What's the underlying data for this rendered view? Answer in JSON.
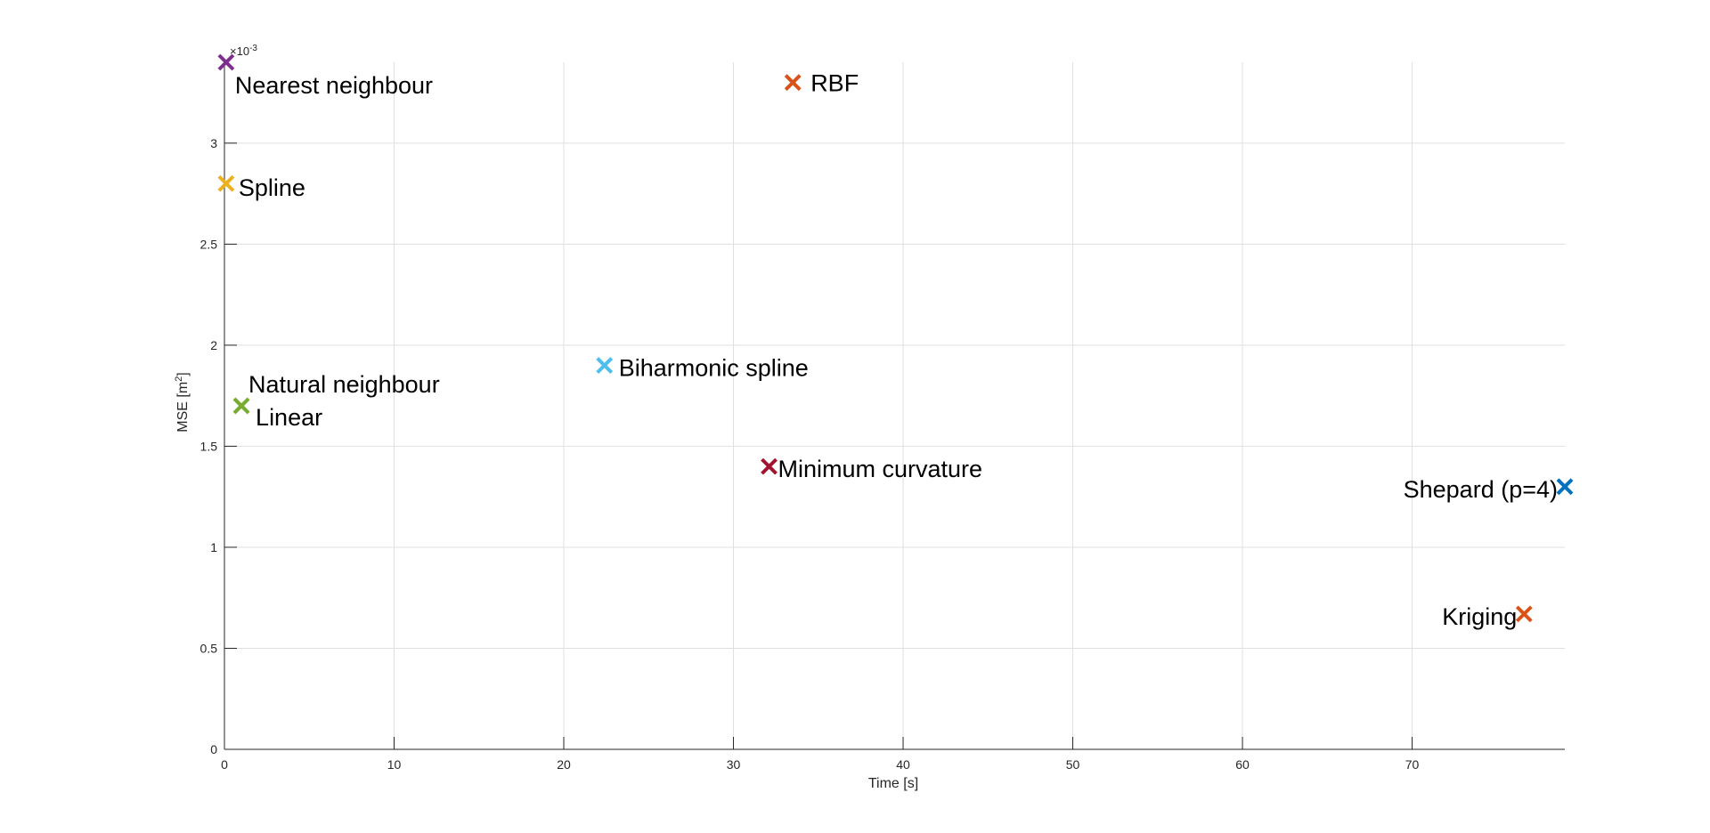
{
  "chart_data": {
    "type": "scatter",
    "title": "",
    "xlabel": "Time [s]",
    "ylabel_main": "MSE [m",
    "ylabel_sup": "2",
    "ylabel_tail": "]",
    "y_exponent": {
      "base": "10",
      "exp": "-3"
    },
    "xlim": [
      0,
      79
    ],
    "ylim": [
      0,
      3.4
    ],
    "x_ticks": [
      0,
      10,
      20,
      30,
      40,
      50,
      60,
      70
    ],
    "y_ticks": [
      0,
      0.5,
      1,
      1.5,
      2,
      2.5,
      3
    ],
    "y_tick_labels": [
      "0",
      "0.5",
      "1",
      "1.5",
      "2",
      "2.5",
      "3"
    ],
    "grid": true,
    "marker": "x",
    "points": [
      {
        "label": "Nearest neighbour",
        "x": 0.1,
        "y": 3.4,
        "color": "#7E2F8E"
      },
      {
        "label": "RBF",
        "x": 33.5,
        "y": 3.3,
        "color": "#D95319"
      },
      {
        "label": "Spline",
        "x": 0.1,
        "y": 2.8,
        "color": "#EDB120"
      },
      {
        "label": "Biharmonic spline",
        "x": 22.4,
        "y": 1.9,
        "color": "#4DBEEE"
      },
      {
        "label": "Natural neighbour",
        "x": 1.0,
        "y": 1.7,
        "color": "#77AC30"
      },
      {
        "label": "Linear",
        "x": 1.0,
        "y": 1.7,
        "color": "#77AC30"
      },
      {
        "label": "Minimum curvature",
        "x": 32.1,
        "y": 1.4,
        "color": "#A2142F"
      },
      {
        "label": "Shepard (p=4)",
        "x": 79.0,
        "y": 1.3,
        "color": "#0072BD"
      },
      {
        "label": "Kriging",
        "x": 76.6,
        "y": 0.67,
        "color": "#D95319"
      }
    ]
  }
}
